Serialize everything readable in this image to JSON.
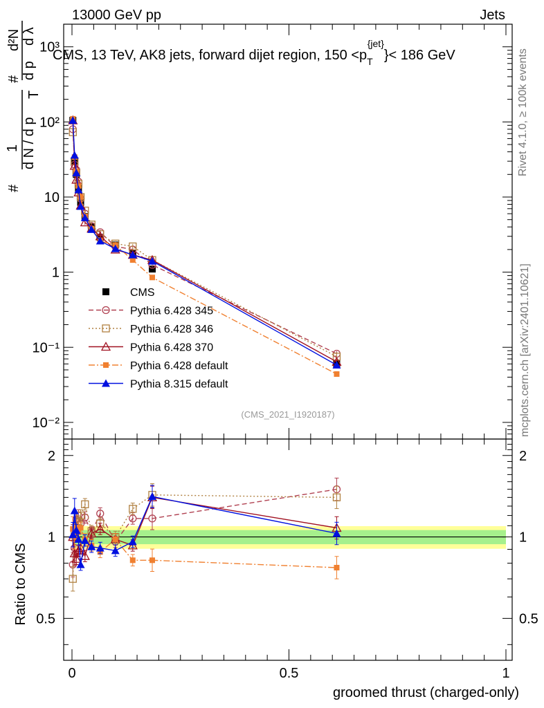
{
  "header": {
    "left": "13000 GeV pp",
    "right": "Jets"
  },
  "side_labels": {
    "rivet": "Rivet 4.1.0, ≥ 100k events",
    "mcplots": "mcplots.cern.ch [arXiv:2401.10621]"
  },
  "chart_data": {
    "type": "line",
    "title": "CMS, 13 TeV, AK8 jets, forward dijet region, 150 <p_T^{jet}< 186 GeV",
    "title_parts": {
      "prefix": "CMS, 13 TeV, AK8 jets, forward dijet region, 150 <p",
      "sub": "T",
      "sup": "{jet}",
      "suffix": "}< 186 GeV"
    },
    "analysis_id": "(CMS_2021_I1920187)",
    "xlabel": "groomed thrust (charged-only)",
    "ylabel": "# (1/(dN/dp_T)) d²N/(dp_T dλ)",
    "ylabel_parts": {
      "hash": "#",
      "one": "1",
      "den": "d N / d p",
      "t": "T",
      "num2": "d²N",
      "den2": "d p",
      "den2b": "d λ"
    },
    "xlim": [
      0,
      1
    ],
    "ylim_log": [
      0.006,
      2000
    ],
    "yscale": "log",
    "x_ticks": [
      "0",
      "0.5",
      "1"
    ],
    "x_tick_values": [
      0,
      0.5,
      1
    ],
    "y_ticks": [
      "10⁻²",
      "10⁻¹",
      "1",
      "10",
      "10²",
      "10³"
    ],
    "y_tick_values": [
      0.01,
      0.1,
      1,
      10,
      100,
      1000
    ],
    "x": [
      0.002,
      0.006,
      0.01,
      0.015,
      0.02,
      0.03,
      0.045,
      0.065,
      0.1,
      0.14,
      0.185,
      0.61
    ],
    "cms": {
      "name": "CMS",
      "values": [
        105,
        30,
        20,
        13,
        8.5,
        5.5,
        4.0,
        2.9,
        2.3,
        1.8,
        1.1,
        0.06
      ],
      "band_ratio_half_width": 0.06
    },
    "series": [
      {
        "name": "Pythia 6.428 345",
        "color": "#b04050",
        "marker": "open-circle",
        "dash": "7,4",
        "values": [
          80,
          27,
          23,
          16,
          9.5,
          6.0,
          4.1,
          3.4,
          2.2,
          2.0,
          1.25,
          0.082
        ],
        "ratio": [
          0.79,
          0.91,
          1.16,
          1.2,
          1.12,
          1.18,
          1.04,
          1.22,
          0.96,
          1.17,
          1.17,
          1.5
        ]
      },
      {
        "name": "Pythia 6.428 346",
        "color": "#b08040",
        "marker": "open-square",
        "dash": "2,3",
        "values": [
          73,
          30,
          21,
          15,
          10,
          6.6,
          4.3,
          3.2,
          2.4,
          2.2,
          1.45,
          0.075
        ],
        "ratio": [
          0.7,
          1.02,
          1.08,
          1.14,
          1.2,
          1.32,
          1.05,
          1.12,
          1.0,
          1.27,
          1.43,
          1.4
        ]
      },
      {
        "name": "Pythia 6.428 370",
        "color": "#a01020",
        "marker": "open-triangle",
        "dash": "",
        "values": [
          105,
          26,
          17,
          11.5,
          7.7,
          4.6,
          3.8,
          3.0,
          2.0,
          1.7,
          1.45,
          0.064
        ],
        "ratio": [
          1.0,
          0.87,
          0.83,
          0.89,
          0.91,
          0.85,
          1.03,
          1.07,
          0.98,
          0.93,
          1.4,
          1.08
        ]
      },
      {
        "name": "Pythia 6.428 default",
        "color": "#f08030",
        "marker": "filled-square",
        "dash": "9,3,2,3",
        "values": [
          110,
          34,
          22,
          14,
          10,
          5.5,
          3.8,
          2.6,
          2.3,
          1.45,
          0.85,
          0.044
        ],
        "ratio": [
          1.07,
          1.0,
          1.1,
          1.04,
          1.08,
          0.98,
          0.93,
          0.88,
          0.98,
          0.82,
          0.82,
          0.77
        ]
      },
      {
        "name": "Pythia 8.315 default",
        "color": "#0010e0",
        "marker": "filled-triangle",
        "dash": "",
        "values": [
          105,
          36,
          21,
          12.5,
          7.5,
          5.3,
          3.7,
          2.6,
          2.05,
          1.7,
          1.4,
          0.058
        ],
        "ratio": [
          1.02,
          1.25,
          1.06,
          0.98,
          0.79,
          0.97,
          0.92,
          0.91,
          0.89,
          0.96,
          1.41,
          1.03
        ]
      }
    ],
    "ratio_panel": {
      "ylabel": "Ratio to CMS",
      "ylim": [
        0.35,
        2.3
      ],
      "y_ticks": [
        "0.5",
        "1",
        "2"
      ],
      "y_tick_values": [
        0.5,
        1,
        2
      ]
    }
  }
}
